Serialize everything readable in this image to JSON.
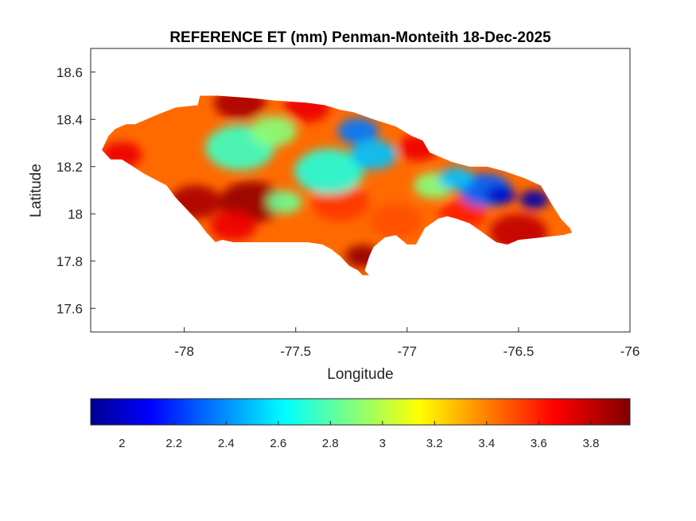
{
  "chart_data": {
    "type": "heatmap",
    "title": "REFERENCE ET (mm) Penman-Monteith 18-Dec-2025",
    "xlabel": "Longitude",
    "ylabel": "Latitude",
    "xlim": [
      -78.42,
      -76.0
    ],
    "ylim": [
      17.5,
      18.7
    ],
    "xticks": [
      -78,
      -77.5,
      -77,
      -76.5,
      -76
    ],
    "yticks": [
      17.6,
      17.8,
      18,
      18.2,
      18.4,
      18.6
    ],
    "colorbar": {
      "orientation": "horizontal",
      "colormap": "jet",
      "range": [
        1.88,
        3.95
      ],
      "ticks": [
        2,
        2.2,
        2.4,
        2.6,
        2.8,
        3,
        3.2,
        3.4,
        3.6,
        3.8
      ]
    },
    "region": "Jamaica",
    "outline": [
      [
        -78.37,
        18.27
      ],
      [
        -78.34,
        18.33
      ],
      [
        -78.31,
        18.36
      ],
      [
        -78.26,
        18.38
      ],
      [
        -78.22,
        18.38
      ],
      [
        -78.12,
        18.42
      ],
      [
        -78.04,
        18.45
      ],
      [
        -77.94,
        18.46
      ],
      [
        -77.93,
        18.5
      ],
      [
        -77.85,
        18.5
      ],
      [
        -77.7,
        18.49
      ],
      [
        -77.6,
        18.48
      ],
      [
        -77.45,
        18.47
      ],
      [
        -77.37,
        18.46
      ],
      [
        -77.3,
        18.44
      ],
      [
        -77.24,
        18.43
      ],
      [
        -77.15,
        18.4
      ],
      [
        -77.05,
        18.37
      ],
      [
        -76.98,
        18.33
      ],
      [
        -76.93,
        18.31
      ],
      [
        -76.9,
        18.26
      ],
      [
        -76.85,
        18.24
      ],
      [
        -76.8,
        18.22
      ],
      [
        -76.72,
        18.2
      ],
      [
        -76.64,
        18.2
      ],
      [
        -76.56,
        18.18
      ],
      [
        -76.47,
        18.15
      ],
      [
        -76.4,
        18.12
      ],
      [
        -76.35,
        18.04
      ],
      [
        -76.31,
        17.98
      ],
      [
        -76.27,
        17.94
      ],
      [
        -76.26,
        17.92
      ],
      [
        -76.3,
        17.91
      ],
      [
        -76.4,
        17.9
      ],
      [
        -76.5,
        17.89
      ],
      [
        -76.55,
        17.87
      ],
      [
        -76.6,
        17.88
      ],
      [
        -76.66,
        17.92
      ],
      [
        -76.72,
        17.96
      ],
      [
        -76.78,
        17.98
      ],
      [
        -76.82,
        17.99
      ],
      [
        -76.86,
        17.98
      ],
      [
        -76.92,
        17.94
      ],
      [
        -76.96,
        17.87
      ],
      [
        -77.0,
        17.87
      ],
      [
        -77.05,
        17.91
      ],
      [
        -77.1,
        17.9
      ],
      [
        -77.15,
        17.86
      ],
      [
        -77.17,
        17.82
      ],
      [
        -77.19,
        17.76
      ],
      [
        -77.17,
        17.74
      ],
      [
        -77.2,
        17.74
      ],
      [
        -77.22,
        17.76
      ],
      [
        -77.26,
        17.78
      ],
      [
        -77.3,
        17.82
      ],
      [
        -77.34,
        17.85
      ],
      [
        -77.38,
        17.87
      ],
      [
        -77.45,
        17.88
      ],
      [
        -77.55,
        17.88
      ],
      [
        -77.7,
        17.88
      ],
      [
        -77.78,
        17.88
      ],
      [
        -77.83,
        17.89
      ],
      [
        -77.86,
        17.88
      ],
      [
        -77.9,
        17.92
      ],
      [
        -77.94,
        17.97
      ],
      [
        -77.99,
        18.02
      ],
      [
        -78.04,
        18.07
      ],
      [
        -78.08,
        18.12
      ],
      [
        -78.12,
        18.14
      ],
      [
        -78.18,
        18.17
      ],
      [
        -78.23,
        18.2
      ],
      [
        -78.28,
        18.23
      ],
      [
        -78.33,
        18.23
      ],
      [
        -78.37,
        18.27
      ]
    ],
    "features": [
      {
        "lon": -77.7,
        "lat": 18.05,
        "value": 3.9,
        "spread": 0.11
      },
      {
        "lon": -77.95,
        "lat": 18.05,
        "value": 3.85,
        "spread": 0.09
      },
      {
        "lon": -77.78,
        "lat": 17.95,
        "value": 3.7,
        "spread": 0.08
      },
      {
        "lon": -77.2,
        "lat": 17.82,
        "value": 3.9,
        "spread": 0.06
      },
      {
        "lon": -77.75,
        "lat": 18.47,
        "value": 3.85,
        "spread": 0.09
      },
      {
        "lon": -77.45,
        "lat": 18.45,
        "value": 3.7,
        "spread": 0.08
      },
      {
        "lon": -78.28,
        "lat": 18.25,
        "value": 3.7,
        "spread": 0.07
      },
      {
        "lon": -76.95,
        "lat": 18.28,
        "value": 3.7,
        "spread": 0.07
      },
      {
        "lon": -76.5,
        "lat": 17.92,
        "value": 3.8,
        "spread": 0.1
      },
      {
        "lon": -76.75,
        "lat": 18.0,
        "value": 3.6,
        "spread": 0.08
      },
      {
        "lon": -77.3,
        "lat": 18.05,
        "value": 3.55,
        "spread": 0.1
      },
      {
        "lon": -77.05,
        "lat": 17.97,
        "value": 3.5,
        "spread": 0.09
      },
      {
        "lon": -77.35,
        "lat": 18.18,
        "value": 2.7,
        "spread": 0.12
      },
      {
        "lon": -77.22,
        "lat": 18.35,
        "value": 2.35,
        "spread": 0.07
      },
      {
        "lon": -77.15,
        "lat": 18.25,
        "value": 2.5,
        "spread": 0.08
      },
      {
        "lon": -77.75,
        "lat": 18.28,
        "value": 2.75,
        "spread": 0.12
      },
      {
        "lon": -77.55,
        "lat": 18.05,
        "value": 2.85,
        "spread": 0.06
      },
      {
        "lon": -77.6,
        "lat": 18.35,
        "value": 2.9,
        "spread": 0.08
      },
      {
        "lon": -76.88,
        "lat": 18.12,
        "value": 2.9,
        "spread": 0.07
      },
      {
        "lon": -76.65,
        "lat": 18.1,
        "value": 2.3,
        "spread": 0.09
      },
      {
        "lon": -76.58,
        "lat": 18.08,
        "value": 2.0,
        "spread": 0.05
      },
      {
        "lon": -76.43,
        "lat": 18.06,
        "value": 1.95,
        "spread": 0.05
      },
      {
        "lon": -76.78,
        "lat": 18.15,
        "value": 2.5,
        "spread": 0.06
      }
    ]
  }
}
